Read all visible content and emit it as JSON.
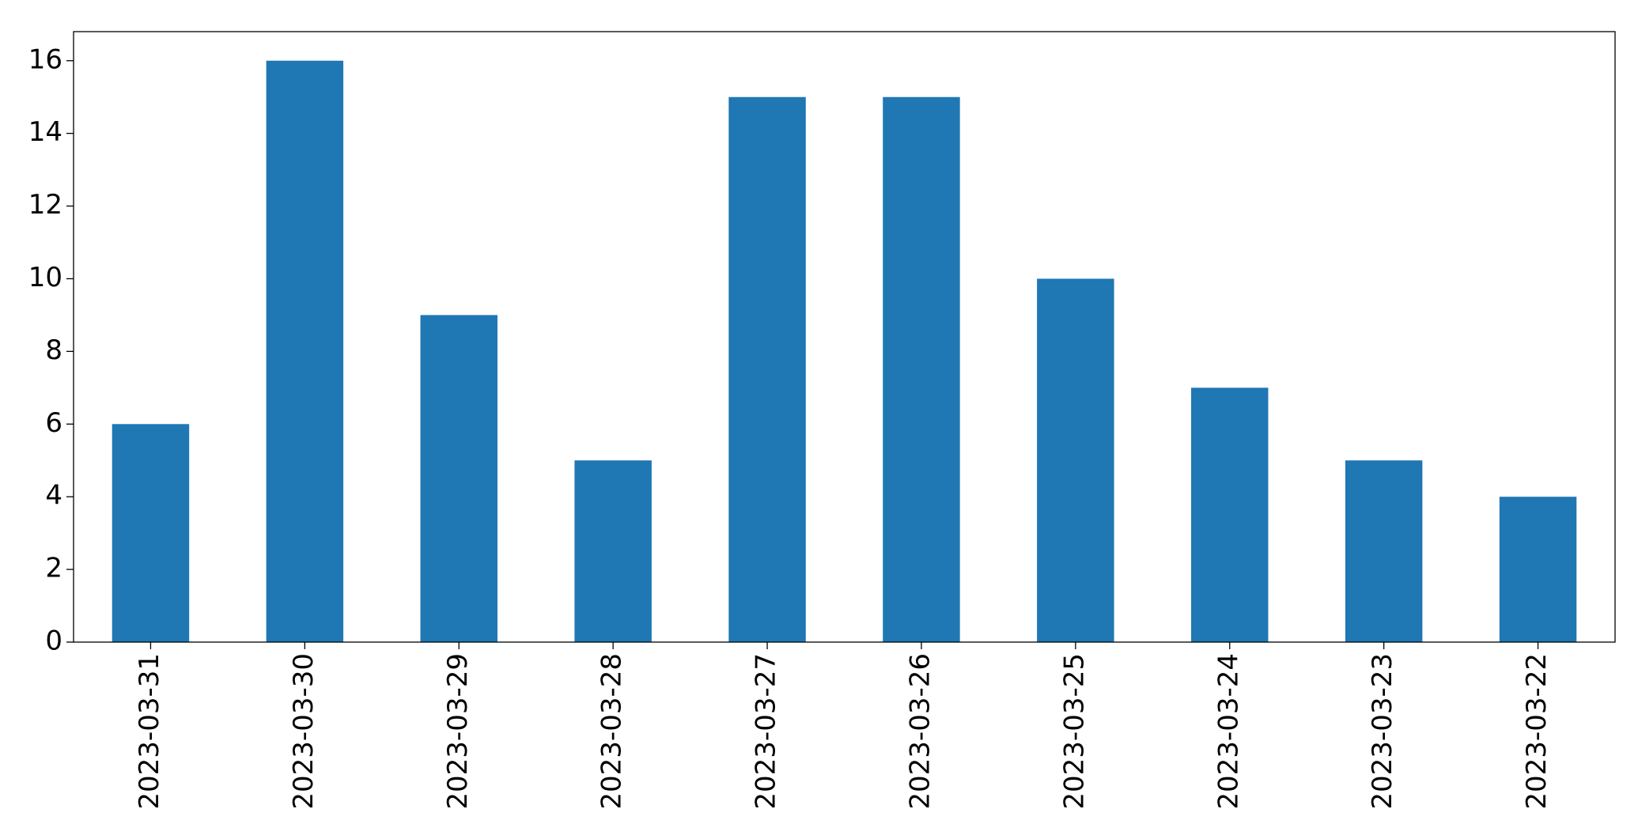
{
  "chart_data": {
    "type": "bar",
    "categories": [
      "2023-03-31",
      "2023-03-30",
      "2023-03-29",
      "2023-03-28",
      "2023-03-27",
      "2023-03-26",
      "2023-03-25",
      "2023-03-24",
      "2023-03-23",
      "2023-03-22"
    ],
    "values": [
      6,
      16,
      9,
      5,
      15,
      15,
      10,
      7,
      5,
      4
    ],
    "color": "#1f77b4",
    "ylim": [
      0,
      16.8
    ],
    "yticks": [
      0,
      2,
      4,
      6,
      8,
      10,
      12,
      14,
      16
    ],
    "grid": false
  }
}
